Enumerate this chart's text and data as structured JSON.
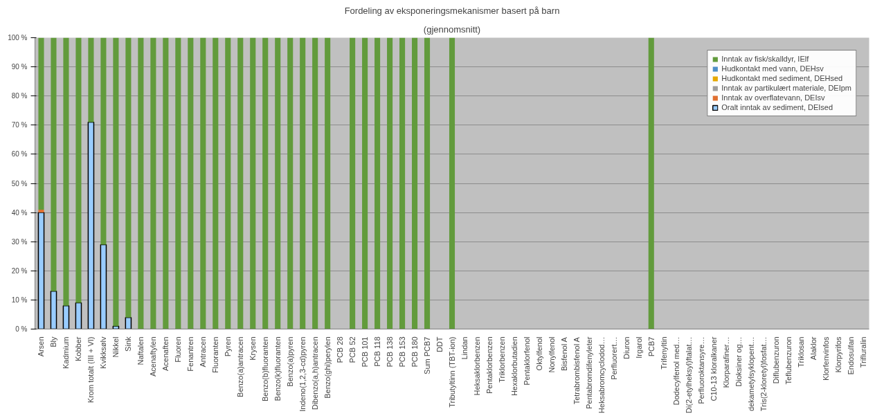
{
  "chart_data": {
    "type": "bar",
    "stacked": true,
    "title": "Fordeling av eksponeringsmekanismer basert på barn",
    "subtitle": "(gjennomsnitt)",
    "categories": [
      "Arsen",
      "Bly",
      "Kadmium",
      "Kobber",
      "Krom totalt (III + VI)",
      "Kvikksølv",
      "Nikkel",
      "Sink",
      "Naftalen",
      "Acenaftylen",
      "Acenaften",
      "Fluoren",
      "Fenantren",
      "Antracen",
      "Fluoranten",
      "Pyren",
      "Benzo(a)antracen",
      "Krysen",
      "Benzo(b)fluoranten",
      "Benzo(k)fluoranten",
      "Benzo(a)pyren",
      "Indeno(1,2,3-cd)pyren",
      "Dibenzo(a,h)antracen",
      "Benzo(ghi)perylen",
      "PCB 28",
      "PCB 52",
      "PCB 101",
      "PCB 118",
      "PCB 138",
      "PCB 153",
      "PCB 180",
      "Sum PCB7",
      "DDT",
      "Tributyltinn (TBT-ion)",
      "Lindan",
      "Heksaklorbenzen",
      "Pentaklorbenzen",
      "Triklorbenzen",
      "Hexaklorbutadien",
      "Pentaklorfenol",
      "Oktylfenol",
      "Nonylfenol",
      "Bisfenol A",
      "Tetrabrombisfenol A",
      "Pentabromdifenyleter",
      "Heksabromcyclodod…",
      "Perfluorert…",
      "Diuron",
      "Irgarol",
      "PCB7",
      "Trifenyltin",
      "Dodecylfenol med…",
      "Di(2-etylheksyl)ftalat…",
      "Perfluoroktansyre…",
      "C10-13 kloralkaner",
      "Klorparafiner…",
      "Dioksiner og…",
      "dekametylsyklopent…",
      "Tris(2-kloretyl)fosfat…",
      "Diflubenzuron",
      "Teflubenzuron",
      "Triklosan",
      "Alaklor",
      "Klorfenvinfos",
      "Klorpyrifos",
      "Endosulfan",
      "Trifluralin"
    ],
    "series": [
      {
        "name": "Oralt inntak av sediment, DEIsed",
        "color": "#99ccff",
        "values": [
          40,
          13,
          8,
          9,
          71,
          29,
          1,
          4,
          0,
          0,
          0,
          0,
          0,
          0,
          0,
          0,
          0,
          0,
          0,
          0,
          0,
          0,
          0,
          0,
          null,
          0,
          0,
          0,
          0,
          0,
          0,
          0,
          null,
          0,
          null,
          null,
          null,
          null,
          null,
          null,
          null,
          null,
          null,
          null,
          null,
          null,
          null,
          null,
          null,
          0,
          null,
          null,
          null,
          null,
          null,
          null,
          null,
          null,
          null,
          null,
          null,
          null,
          null,
          null,
          null,
          null,
          null
        ]
      },
      {
        "name": "Inntak av overflatevann, DEIsv",
        "color": "#e07030",
        "values": [
          1,
          0,
          0,
          0,
          0,
          0,
          0,
          0,
          0,
          0,
          0,
          0,
          0,
          0,
          0,
          0,
          0,
          0,
          0,
          0,
          0,
          0,
          0,
          0,
          null,
          0,
          0,
          0,
          0,
          0,
          0,
          0,
          null,
          0,
          null,
          null,
          null,
          null,
          null,
          null,
          null,
          null,
          null,
          null,
          null,
          null,
          null,
          null,
          null,
          0,
          null,
          null,
          null,
          null,
          null,
          null,
          null,
          null,
          null,
          null,
          null,
          null,
          null,
          null,
          null,
          null,
          null
        ]
      },
      {
        "name": "Inntak av partikulært materiale, DEIpm",
        "color": "#9e9e9e",
        "values": [
          0,
          0,
          0,
          0,
          0,
          0,
          0,
          0,
          0,
          0,
          0,
          0,
          0,
          0,
          0,
          0,
          0,
          0,
          0,
          0,
          0,
          0,
          0,
          0,
          null,
          0,
          0,
          0,
          0,
          0,
          0,
          0,
          null,
          0,
          null,
          null,
          null,
          null,
          null,
          null,
          null,
          null,
          null,
          null,
          null,
          null,
          null,
          null,
          null,
          0,
          null,
          null,
          null,
          null,
          null,
          null,
          null,
          null,
          null,
          null,
          null,
          null,
          null,
          null,
          null,
          null,
          null
        ]
      },
      {
        "name": "Hudkontakt med sediment, DEHsed",
        "color": "#e6a800",
        "values": [
          0,
          0,
          0,
          0,
          0,
          0,
          0,
          0,
          0,
          0,
          0,
          0,
          0,
          0,
          0,
          0,
          0,
          0,
          0,
          0,
          0,
          0,
          0,
          0,
          null,
          0,
          0,
          0,
          0,
          0,
          0,
          0,
          null,
          0,
          null,
          null,
          null,
          null,
          null,
          null,
          null,
          null,
          null,
          null,
          null,
          null,
          null,
          null,
          null,
          0,
          null,
          null,
          null,
          null,
          null,
          null,
          null,
          null,
          null,
          null,
          null,
          null,
          null,
          null,
          null,
          null,
          null
        ]
      },
      {
        "name": "Hudkontakt med vann, DEHsv",
        "color": "#4f8fc8",
        "values": [
          0,
          0,
          0,
          0,
          0,
          0,
          0,
          0,
          0,
          0,
          0,
          0,
          0,
          0,
          0,
          0,
          0,
          0,
          0,
          0,
          0,
          0,
          0,
          0,
          null,
          0,
          0,
          0,
          0,
          0,
          0,
          0,
          null,
          0,
          null,
          null,
          null,
          null,
          null,
          null,
          null,
          null,
          null,
          null,
          null,
          null,
          null,
          null,
          null,
          0,
          null,
          null,
          null,
          null,
          null,
          null,
          null,
          null,
          null,
          null,
          null,
          null,
          null,
          null,
          null,
          null,
          null
        ]
      },
      {
        "name": "Inntak av fisk/skalldyr, IElf",
        "color": "#629b3c",
        "values": [
          59,
          87,
          92,
          91,
          29,
          71,
          99,
          96,
          100,
          100,
          100,
          100,
          100,
          100,
          100,
          100,
          100,
          100,
          100,
          100,
          100,
          100,
          100,
          100,
          null,
          100,
          100,
          100,
          100,
          100,
          100,
          100,
          null,
          100,
          null,
          null,
          null,
          null,
          null,
          null,
          null,
          null,
          null,
          null,
          null,
          null,
          null,
          null,
          null,
          100,
          null,
          null,
          null,
          null,
          null,
          null,
          null,
          null,
          null,
          null,
          null,
          null,
          null,
          null,
          null,
          null,
          null
        ]
      }
    ],
    "ylim": [
      0,
      100
    ],
    "yticks": [
      {
        "value": 0,
        "label": "0 %"
      },
      {
        "value": 10,
        "label": "10 %"
      },
      {
        "value": 20,
        "label": "20 %"
      },
      {
        "value": 30,
        "label": "30 %"
      },
      {
        "value": 40,
        "label": "40 %"
      },
      {
        "value": 50,
        "label": "50 %"
      },
      {
        "value": 60,
        "label": "60 %"
      },
      {
        "value": 70,
        "label": "70 %"
      },
      {
        "value": 80,
        "label": "80 %"
      },
      {
        "value": 90,
        "label": "90 %"
      },
      {
        "value": 100,
        "label": "100 %"
      }
    ],
    "grid": "y",
    "legend": "top right"
  }
}
